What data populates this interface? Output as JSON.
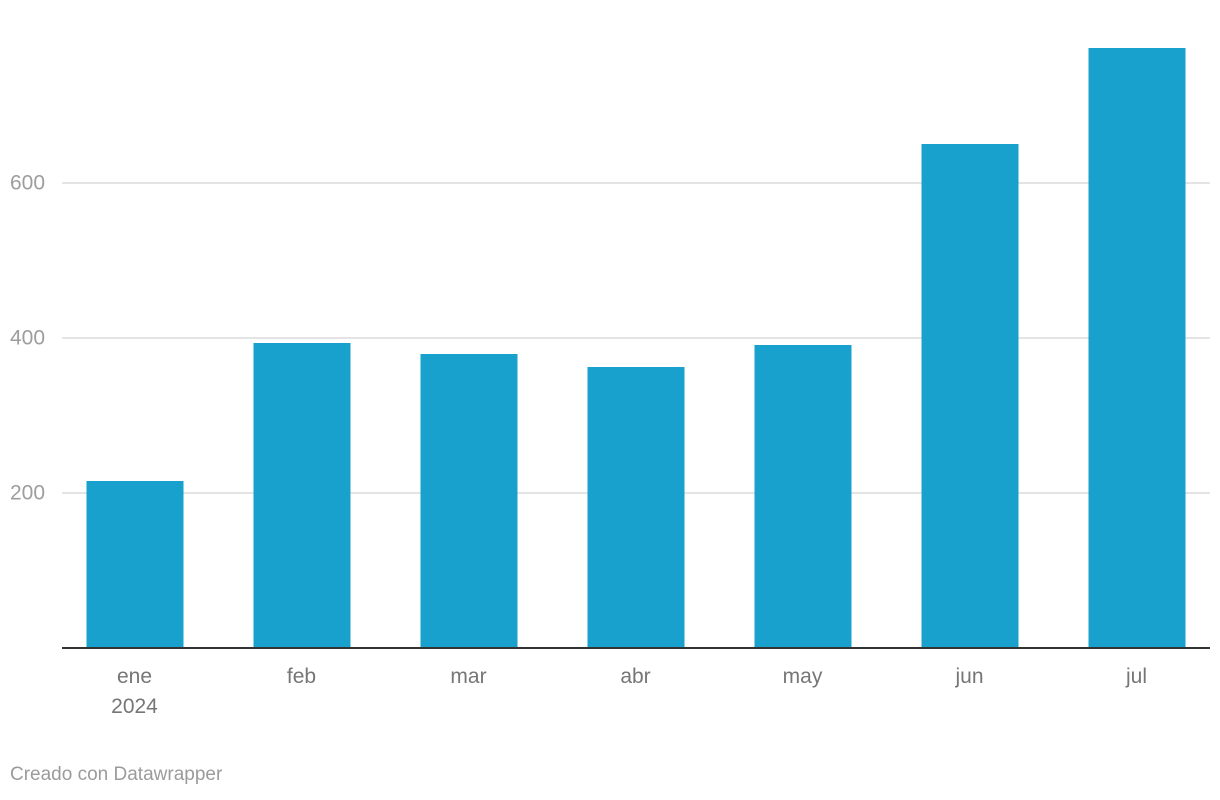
{
  "chart_data": {
    "type": "bar",
    "title": "",
    "categories": [
      "ene",
      "feb",
      "mar",
      "abr",
      "may",
      "jun",
      "jul"
    ],
    "category_sublabels": [
      "2024",
      "",
      "",
      "",
      "",
      "",
      ""
    ],
    "values": [
      215,
      394,
      380,
      362,
      391,
      650,
      774
    ],
    "xlabel": "",
    "ylabel": "",
    "ylim": [
      0,
      780
    ],
    "yticks": [
      200,
      400,
      600
    ],
    "grid": "horizontal",
    "legend": "none",
    "bar_color": "#18a1cd"
  },
  "footer": {
    "attribution": "Creado con Datawrapper"
  },
  "colors": {
    "bar": "#18a1cd",
    "gridline": "#e4e4e4",
    "axis_line": "#333333",
    "y_tick_label": "#9d9d9d",
    "x_tick_label": "#767676",
    "attribution_text": "#9b9b9b",
    "background": "#ffffff"
  }
}
